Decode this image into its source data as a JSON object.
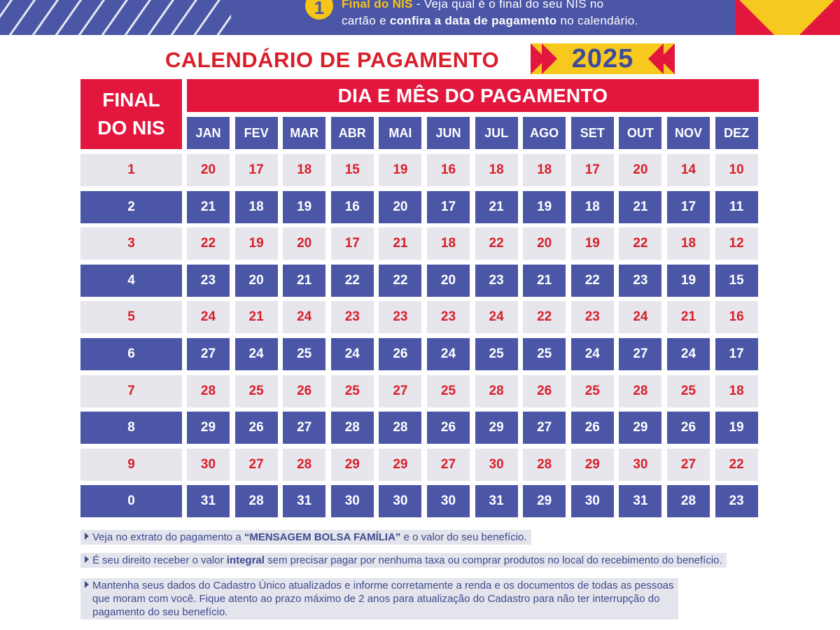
{
  "banner": {
    "badge_icon": "info-number-icon",
    "badge_glyph": "1",
    "line1_highlight": "Final do NIS",
    "line1_rest": " - Veja qual é o final do seu NIS no",
    "line2_pre": "cartão e ",
    "line2_bold": "confira a data de pagamento",
    "line2_post": " no calendário."
  },
  "title": {
    "text": "CALENDÁRIO DE PAGAMENTO",
    "year": "2025"
  },
  "table": {
    "final_header_line1": "FINAL",
    "final_header_line2": "DO NIS",
    "dia_header": "DIA E MÊS DO PAGAMENTO",
    "months": [
      "JAN",
      "FEV",
      "MAR",
      "ABR",
      "MAI",
      "JUN",
      "JUL",
      "AGO",
      "SET",
      "OUT",
      "NOV",
      "DEZ"
    ],
    "rows": [
      {
        "nis": "1",
        "days": [
          "20",
          "17",
          "18",
          "15",
          "19",
          "16",
          "18",
          "18",
          "17",
          "20",
          "14",
          "10"
        ]
      },
      {
        "nis": "2",
        "days": [
          "21",
          "18",
          "19",
          "16",
          "20",
          "17",
          "21",
          "19",
          "18",
          "21",
          "17",
          "11"
        ]
      },
      {
        "nis": "3",
        "days": [
          "22",
          "19",
          "20",
          "17",
          "21",
          "18",
          "22",
          "20",
          "19",
          "22",
          "18",
          "12"
        ]
      },
      {
        "nis": "4",
        "days": [
          "23",
          "20",
          "21",
          "22",
          "22",
          "20",
          "23",
          "21",
          "22",
          "23",
          "19",
          "15"
        ]
      },
      {
        "nis": "5",
        "days": [
          "24",
          "21",
          "24",
          "23",
          "23",
          "23",
          "24",
          "22",
          "23",
          "24",
          "21",
          "16"
        ]
      },
      {
        "nis": "6",
        "days": [
          "27",
          "24",
          "25",
          "24",
          "26",
          "24",
          "25",
          "25",
          "24",
          "27",
          "24",
          "17"
        ]
      },
      {
        "nis": "7",
        "days": [
          "28",
          "25",
          "26",
          "25",
          "27",
          "25",
          "28",
          "26",
          "25",
          "28",
          "25",
          "18"
        ]
      },
      {
        "nis": "8",
        "days": [
          "29",
          "26",
          "27",
          "28",
          "28",
          "26",
          "29",
          "27",
          "26",
          "29",
          "26",
          "19"
        ]
      },
      {
        "nis": "9",
        "days": [
          "30",
          "27",
          "28",
          "29",
          "29",
          "27",
          "30",
          "28",
          "29",
          "30",
          "27",
          "22"
        ]
      },
      {
        "nis": "0",
        "days": [
          "31",
          "28",
          "31",
          "30",
          "30",
          "30",
          "31",
          "29",
          "30",
          "31",
          "28",
          "23"
        ]
      }
    ]
  },
  "notes": {
    "note1_pre": "Veja no extrato do pagamento a ",
    "note1_bold": "“MENSAGEM BOLSA FAMÍLIA”",
    "note1_post": " e o valor do seu benefício.",
    "note2_pre": "É seu direito receber o valor ",
    "note2_bold": "integral",
    "note2_post": " sem precisar pagar por nenhuma taxa ou comprar produtos no local do recebimento do benefício.",
    "note3_line1": "Mantenha seus dados do Cadastro Único atualizados e informe corretamente a renda e os documentos de todas as pessoas",
    "note3_line2": "que moram com você. Fique atento ao prazo máximo de 2 anos para atualização do Cadastro para não ter interrupção do",
    "note3_line3": "pagamento do seu benefício."
  },
  "colors": {
    "brand_blue": "#4b56a7",
    "brand_red": "#e3173e",
    "brand_yellow": "#f7c81e",
    "light_row": "#e6e6ec"
  }
}
